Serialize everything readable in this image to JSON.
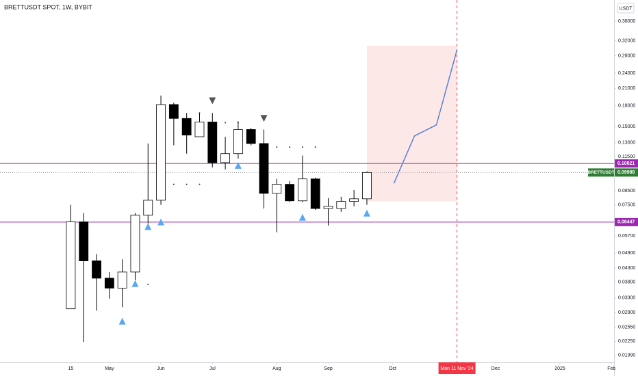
{
  "chart_data": {
    "type": "candlestick",
    "title": "BRETTUSDT SPOT, 1W, BYBIT",
    "currency": "USDT",
    "symbol": "BRETTUSDT",
    "log_scale": true,
    "grid": false,
    "x": [
      0,
      1,
      2,
      3,
      4,
      5,
      6,
      7,
      8,
      9,
      10,
      11,
      12,
      13,
      14,
      15,
      16,
      17,
      18,
      19,
      20,
      21,
      22,
      23
    ],
    "open": [
      0.03,
      0.0646,
      0.0458,
      0.0393,
      0.036,
      0.0415,
      0.0685,
      0.0782,
      0.182,
      0.161,
      0.137,
      0.156,
      0.109,
      0.118,
      0.146,
      0.129,
      0.0831,
      0.09,
      0.0778,
      0.0944,
      0.0727,
      0.0727,
      0.0774,
      0.0792
    ],
    "high": [
      0.0751,
      0.0698,
      0.0486,
      0.0415,
      0.0464,
      0.0698,
      0.129,
      0.197,
      0.185,
      0.169,
      0.169,
      0.169,
      0.137,
      0.157,
      0.148,
      0.146,
      0.0944,
      0.0927,
      0.116,
      0.0955,
      0.0797,
      0.0806,
      0.0856,
      0.1008
    ],
    "low": [
      0.03,
      0.0224,
      0.0295,
      0.0328,
      0.0304,
      0.0386,
      0.0637,
      0.0751,
      0.127,
      0.118,
      0.137,
      0.1045,
      0.1026,
      0.113,
      0.127,
      0.0727,
      0.0589,
      0.0769,
      0.0769,
      0.0718,
      0.0626,
      0.0706,
      0.0741,
      0.0751
    ],
    "close": [
      0.0646,
      0.0458,
      0.0393,
      0.036,
      0.0415,
      0.0685,
      0.0782,
      0.182,
      0.161,
      0.139,
      0.156,
      0.109,
      0.118,
      0.146,
      0.129,
      0.0831,
      0.09,
      0.0778,
      0.0944,
      0.0727,
      0.0741,
      0.0774,
      0.0792,
      0.09988
    ],
    "up_color": "#ffffff",
    "down_color": "#000000",
    "xlim": [
      -5.5,
      42.2
    ],
    "ylim": [
      0.0187,
      0.458
    ],
    "yticks": [
      {
        "value": 0.38,
        "label": "0.38000"
      },
      {
        "value": 0.32,
        "label": "0.32000"
      },
      {
        "value": 0.28,
        "label": "0.28000"
      },
      {
        "value": 0.24,
        "label": "0.24000"
      },
      {
        "value": 0.21,
        "label": "0.21000"
      },
      {
        "value": 0.18,
        "label": "0.18000"
      },
      {
        "value": 0.15,
        "label": "0.15000"
      },
      {
        "value": 0.13,
        "label": "0.13000"
      },
      {
        "value": 0.115,
        "label": "0.11500"
      },
      {
        "value": 0.085,
        "label": "0.08500"
      },
      {
        "value": 0.075,
        "label": "0.07500"
      },
      {
        "value": 0.057,
        "label": "0.05700"
      },
      {
        "value": 0.049,
        "label": "0.04900"
      },
      {
        "value": 0.043,
        "label": "0.04300"
      },
      {
        "value": 0.038,
        "label": "0.03800"
      },
      {
        "value": 0.033,
        "label": "0.03300"
      },
      {
        "value": 0.029,
        "label": "0.02900"
      },
      {
        "value": 0.0255,
        "label": "0.02550"
      },
      {
        "value": 0.0225,
        "label": "0.02250"
      },
      {
        "value": 0.0199,
        "label": "0.01990"
      }
    ],
    "xticks": [
      {
        "value": 0,
        "label": "15"
      },
      {
        "value": 3,
        "label": "May"
      },
      {
        "value": 7,
        "label": "Jun"
      },
      {
        "value": 11,
        "label": "Jul"
      },
      {
        "value": 16,
        "label": "Aug"
      },
      {
        "value": 20,
        "label": "Sep"
      },
      {
        "value": 25,
        "label": "Oct"
      },
      {
        "value": 30,
        "label": "Mon 11 Nov '24"
      },
      {
        "value": 33,
        "label": "Dec"
      },
      {
        "value": 38,
        "label": "2025"
      },
      {
        "value": 42,
        "label": "Feb"
      }
    ],
    "highlight_xtick": 7,
    "highlight_color": "#f23645",
    "levels": [
      0.10821,
      0.06447
    ],
    "level_color": "#9c27b0",
    "last_price": 0.09988,
    "last_color": "#2e7d32",
    "zone": {
      "x": [
        23,
        30
      ],
      "values": [
        0.0774,
        0.306
      ],
      "color": "#fde8e8"
    },
    "projection": {
      "x": [
        25.1,
        26.7,
        28.4,
        30
      ],
      "values": [
        0.0908,
        0.138,
        0.152,
        0.295
      ],
      "color": "#5b7fd6"
    },
    "up_markers": {
      "x": [
        4,
        5,
        6,
        7,
        13,
        18,
        23
      ],
      "values": [
        0.0269,
        0.0375,
        0.062,
        0.0646,
        0.1064,
        0.0673,
        0.0698
      ],
      "color": "#5ba8f0"
    },
    "down_markers": {
      "x": [
        11,
        15
      ],
      "values": [
        0.188,
        0.161
      ],
      "color": "#555555"
    },
    "dots": {
      "x": [
        8,
        9,
        10,
        5,
        6,
        10,
        12,
        13,
        16,
        17,
        18,
        19
      ],
      "values": [
        0.09,
        0.09,
        0.09,
        0.0372,
        0.0372,
        0.169,
        0.155,
        0.155,
        0.125,
        0.125,
        0.125,
        0.125
      ]
    }
  }
}
